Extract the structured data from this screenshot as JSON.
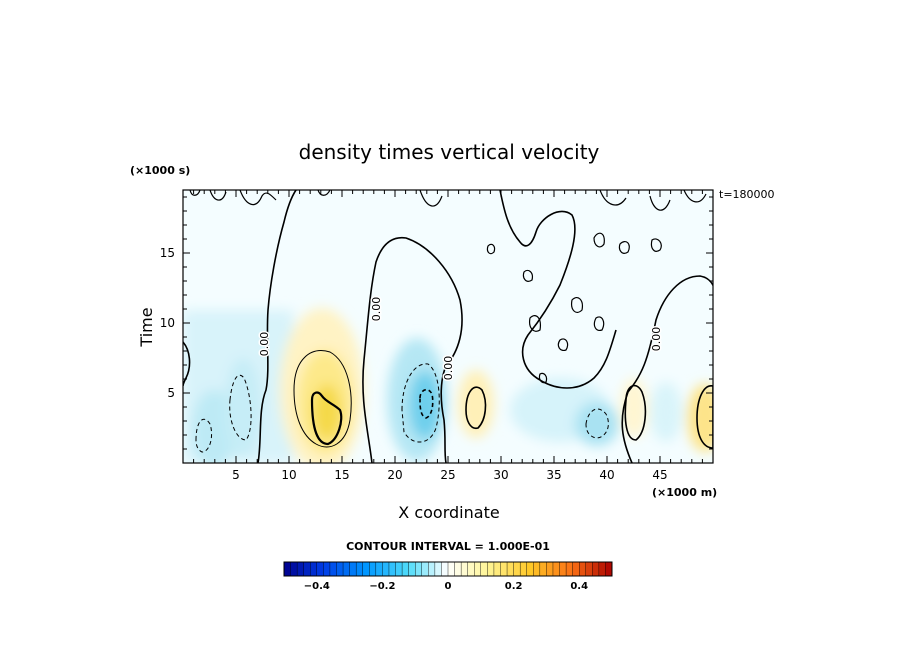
{
  "chart_data": {
    "type": "heatmap",
    "title": "density times vertical velocity",
    "xlabel": "X coordinate",
    "ylabel": "Time",
    "x_unit": "(×1000 m)",
    "y_unit": "(×1000 s)",
    "time_label": "t=180000",
    "xlim": [
      0,
      50
    ],
    "ylim": [
      0,
      19.5
    ],
    "x_ticks": [
      5,
      10,
      15,
      20,
      25,
      30,
      35,
      40,
      45
    ],
    "y_ticks": [
      5,
      10,
      15
    ],
    "contour_labels": [
      "0.00",
      "0.00",
      "0.00",
      "0.00"
    ],
    "contour_interval_text": "CONTOUR INTERVAL = 1.000E-01",
    "colorbar": {
      "range": [
        -0.5,
        0.5
      ],
      "ticks": [
        -0.4,
        -0.2,
        0,
        0.2,
        0.4
      ],
      "tick_labels": [
        "−0.4",
        "−0.2",
        "0",
        "0.2",
        "0.4"
      ],
      "levels": 50
    },
    "features": [
      {
        "x": 3,
        "y": 2.5,
        "value": -0.2
      },
      {
        "x": 5.5,
        "y": 3.8,
        "value": -0.2
      },
      {
        "x": 13,
        "y": 4.5,
        "value": 0.35
      },
      {
        "x": 22.5,
        "y": 4,
        "value": -0.32
      },
      {
        "x": 27,
        "y": 4,
        "value": 0.2
      },
      {
        "x": 39,
        "y": 3,
        "value": -0.22
      },
      {
        "x": 48.5,
        "y": 3,
        "value": 0.3
      }
    ]
  }
}
